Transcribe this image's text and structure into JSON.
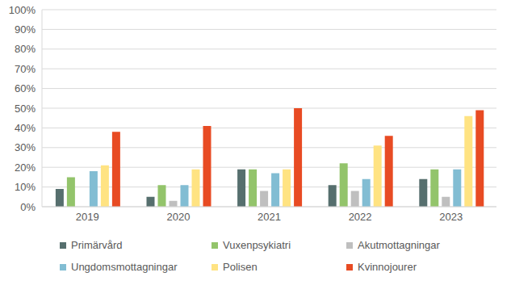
{
  "chart_data": {
    "type": "bar",
    "categories": [
      "2019",
      "2020",
      "2021",
      "2022",
      "2023"
    ],
    "series": [
      {
        "name": "Primärvård",
        "color": "#566f6e",
        "values": [
          9,
          5,
          19,
          11,
          14
        ]
      },
      {
        "name": "Vuxenpsykiatri",
        "color": "#93c46b",
        "values": [
          15,
          11,
          19,
          22,
          19
        ]
      },
      {
        "name": "Akutmottagningar",
        "color": "#bfbfbf",
        "values": [
          null,
          3,
          8,
          8,
          5
        ]
      },
      {
        "name": "Ungdomsmottagningar",
        "color": "#82bdd3",
        "values": [
          18,
          11,
          17,
          14,
          19
        ]
      },
      {
        "name": "Polisen",
        "color": "#ffe382",
        "values": [
          21,
          19,
          19,
          31,
          46
        ]
      },
      {
        "name": "Kvinnojourer",
        "color": "#e84b23",
        "values": [
          38,
          41,
          50,
          36,
          49
        ]
      }
    ],
    "ylim": [
      0,
      100
    ],
    "yticks": [
      {
        "value": 0,
        "label": "0%"
      },
      {
        "value": 10,
        "label": "10%"
      },
      {
        "value": 20,
        "label": "20%"
      },
      {
        "value": 30,
        "label": "30%"
      },
      {
        "value": 40,
        "label": "40%"
      },
      {
        "value": 50,
        "label": "50%"
      },
      {
        "value": 60,
        "label": "60%"
      },
      {
        "value": 70,
        "label": "70%"
      },
      {
        "value": 80,
        "label": "80%"
      },
      {
        "value": 90,
        "label": "90%"
      },
      {
        "value": 100,
        "label": "100%"
      }
    ],
    "grid": true,
    "legend": "bottom"
  }
}
